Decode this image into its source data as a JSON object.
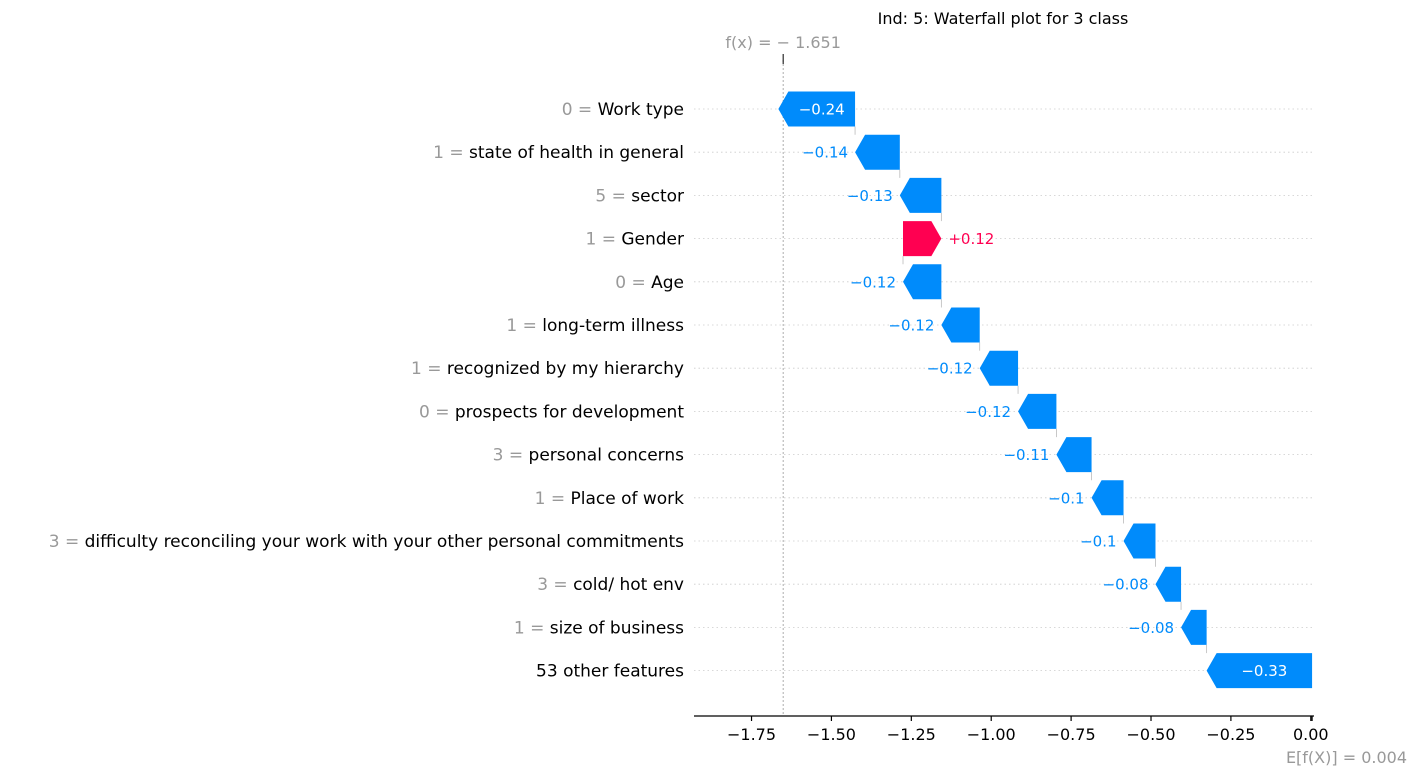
{
  "chart_data": {
    "type": "waterfall",
    "title": "Ind: 5: Waterfall plot for 3 class",
    "fx_label": "f(x) = − 1.651",
    "fx_value": -1.651,
    "base_label": "E[f(X)] = 0.004",
    "base_value": 0.004,
    "xlim": [
      -1.93,
      0.01
    ],
    "xticks": [
      -1.75,
      -1.5,
      -1.25,
      -1.0,
      -0.75,
      -0.5,
      -0.25,
      0.0
    ],
    "xtick_labels": [
      "−1.75",
      "−1.50",
      "−1.25",
      "−1.00",
      "−0.75",
      "−0.50",
      "−0.25",
      "0.00"
    ],
    "features": [
      {
        "value": "0 =",
        "name": "Work type",
        "contribution": -0.24,
        "label": "−0.24"
      },
      {
        "value": "1 =",
        "name": "state of health in general",
        "contribution": -0.14,
        "label": "−0.14"
      },
      {
        "value": "5 =",
        "name": "sector",
        "contribution": -0.13,
        "label": "−0.13"
      },
      {
        "value": "1 =",
        "name": "Gender",
        "contribution": 0.12,
        "label": "+0.12"
      },
      {
        "value": "0 =",
        "name": "Age",
        "contribution": -0.12,
        "label": "−0.12"
      },
      {
        "value": "1 =",
        "name": "long-term illness",
        "contribution": -0.12,
        "label": "−0.12"
      },
      {
        "value": "1 =",
        "name": "recognized by my hierarchy",
        "contribution": -0.12,
        "label": "−0.12"
      },
      {
        "value": "0 =",
        "name": "prospects for development",
        "contribution": -0.12,
        "label": "−0.12"
      },
      {
        "value": "3 =",
        "name": "personal concerns",
        "contribution": -0.11,
        "label": "−0.11"
      },
      {
        "value": "1 =",
        "name": "Place of work",
        "contribution": -0.1,
        "label": "−0.1"
      },
      {
        "value": "3 =",
        "name": "difficulty reconciling your work with your other personal commitments",
        "contribution": -0.1,
        "label": "−0.1"
      },
      {
        "value": "3 =",
        "name": "cold/ hot env",
        "contribution": -0.08,
        "label": "−0.08"
      },
      {
        "value": "1 =",
        "name": "size of business",
        "contribution": -0.08,
        "label": "−0.08"
      },
      {
        "value": "",
        "name": "53 other features",
        "contribution": -0.33,
        "label": "−0.33"
      }
    ],
    "colors": {
      "negative": "#008bfb",
      "positive": "#ff0051",
      "muted_text": "#999999"
    }
  }
}
